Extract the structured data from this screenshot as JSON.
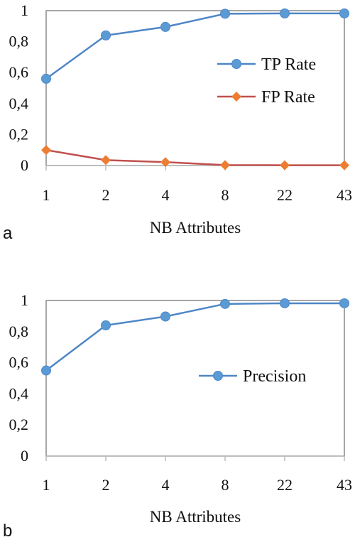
{
  "chart_data": [
    {
      "type": "line",
      "panel_label": "a",
      "categories": [
        "1",
        "2",
        "4",
        "8",
        "22",
        "43"
      ],
      "xlabel": "NB Attributes",
      "ylabel": "",
      "ylim": [
        0,
        1
      ],
      "yticks": [
        "0",
        "0,2",
        "0,4",
        "0,6",
        "0,8",
        "1"
      ],
      "grid": false,
      "legend_position": "right",
      "series": [
        {
          "name": "TP Rate",
          "values": [
            0.56,
            0.84,
            0.895,
            0.98,
            0.982,
            0.982
          ],
          "color": "#4e86c6",
          "marker": "circle"
        },
        {
          "name": "FP Rate",
          "values": [
            0.1,
            0.035,
            0.022,
            0.003,
            0.002,
            0.002
          ],
          "color": "#c0504d",
          "marker_color": "#ed7d31",
          "marker": "diamond"
        }
      ]
    },
    {
      "type": "line",
      "panel_label": "b",
      "categories": [
        "1",
        "2",
        "4",
        "8",
        "22",
        "43"
      ],
      "xlabel": "NB Attributes",
      "ylabel": "",
      "ylim": [
        0,
        1
      ],
      "yticks": [
        "0",
        "0,2",
        "0,4",
        "0,6",
        "0,8",
        "1"
      ],
      "grid": false,
      "legend_position": "right",
      "series": [
        {
          "name": "Precision",
          "values": [
            0.55,
            0.84,
            0.897,
            0.978,
            0.982,
            0.982
          ],
          "color": "#4e86c6",
          "marker": "circle"
        }
      ]
    }
  ]
}
